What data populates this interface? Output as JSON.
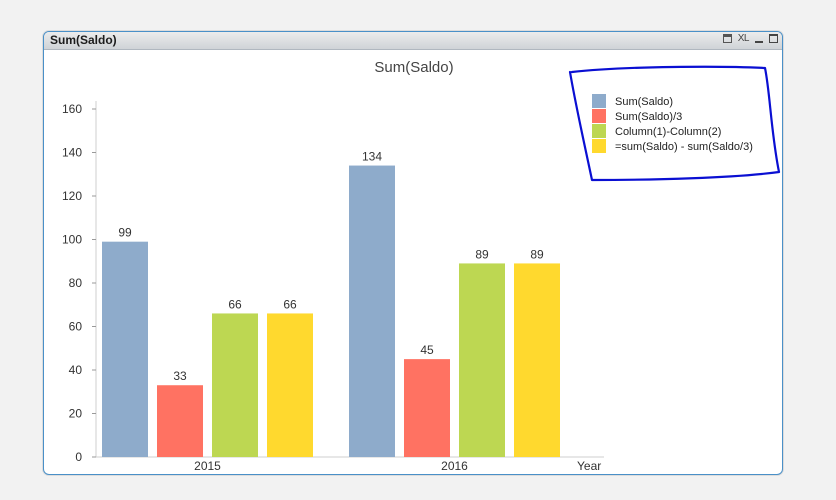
{
  "window": {
    "title": "Sum(Saldo)",
    "controls": {
      "print": "print-icon",
      "xl": "XL",
      "minimize": "minimize-icon",
      "maximize": "maximize-icon"
    }
  },
  "chart_data": {
    "type": "bar",
    "title": "Sum(Saldo)",
    "xlabel": "Year",
    "ylabel": "",
    "ylim": [
      0,
      160
    ],
    "yticks": [
      0,
      20,
      40,
      60,
      80,
      100,
      120,
      140,
      160
    ],
    "categories": [
      "2015",
      "2016"
    ],
    "series": [
      {
        "name": "Sum(Saldo)",
        "color": "#8eabcb",
        "values": [
          99,
          134
        ]
      },
      {
        "name": "Sum(Saldo)/3",
        "color": "#ff7262",
        "values": [
          33,
          45
        ]
      },
      {
        "name": "Column(1)-Column(2)",
        "color": "#bdd752",
        "values": [
          66,
          89
        ]
      },
      {
        "name": "=sum(Saldo) - sum(Saldo/3)",
        "color": "#ffd92e",
        "values": [
          66,
          89
        ]
      }
    ],
    "data_labels": [
      [
        "99",
        "134"
      ],
      [
        "33",
        "45"
      ],
      [
        "66",
        "89"
      ],
      [
        "66",
        "89"
      ]
    ],
    "legend_position": "top-right",
    "legend_highlight_color": "#0a0fd2",
    "grid": false
  }
}
